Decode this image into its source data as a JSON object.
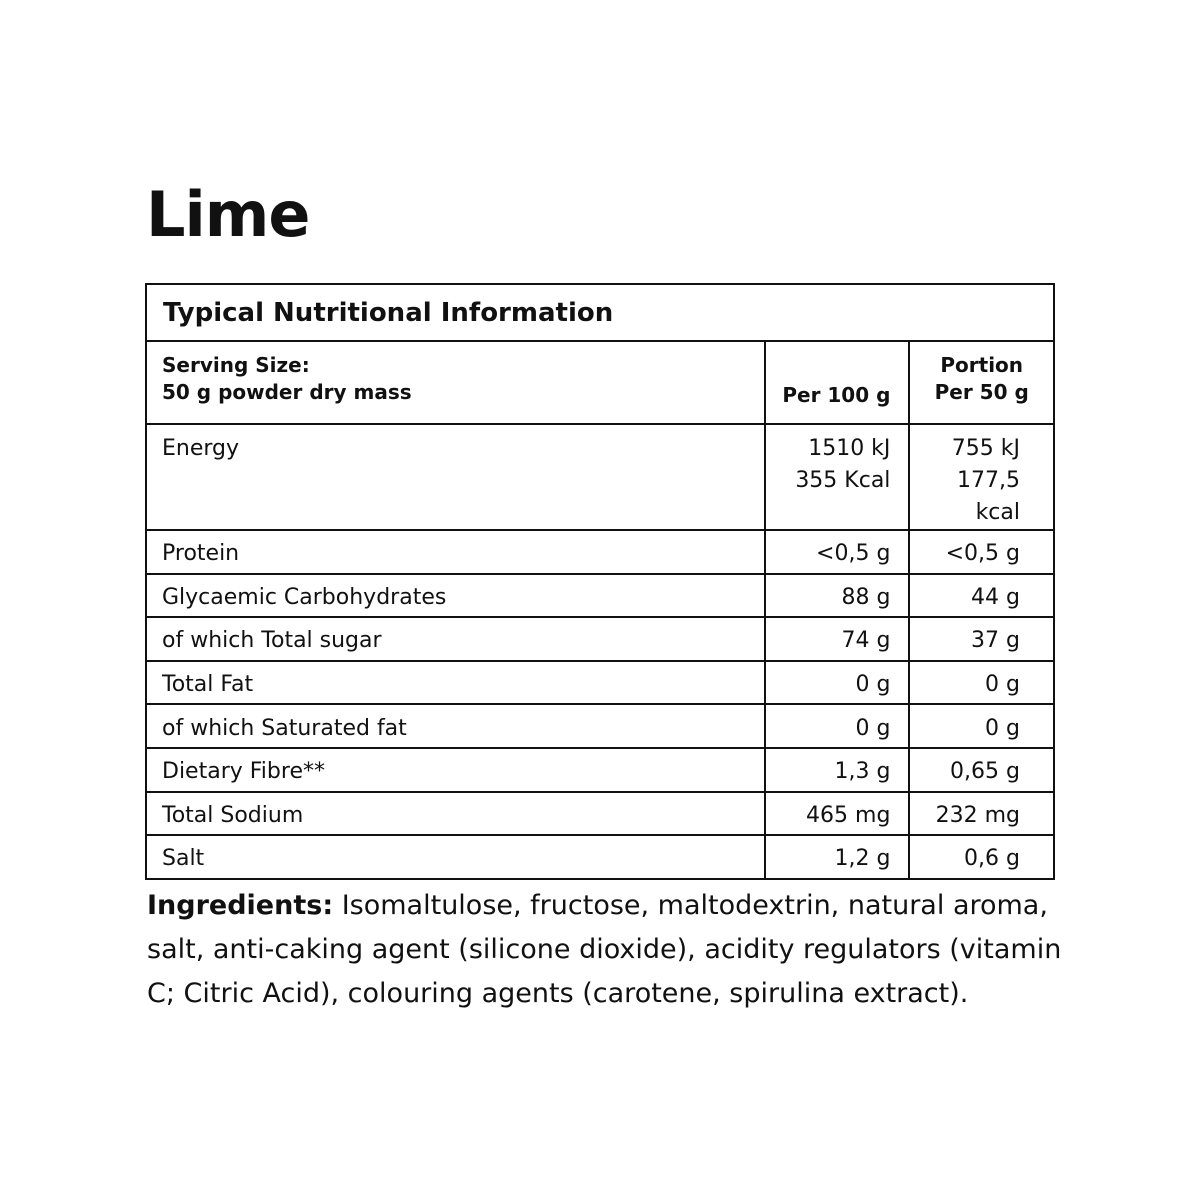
{
  "title": "Lime",
  "table": {
    "caption": "Typical Nutritional Information",
    "serving_label": "Serving Size:",
    "serving_value": "50 g powder dry mass",
    "col_per100": "Per 100 g",
    "col_portion_line1": "Portion",
    "col_portion_line2": "Per 50 g",
    "energy": {
      "label": "Energy",
      "per100_kj": "1510 kJ",
      "per100_kcal": "355 Kcal",
      "portion_kj": "755 kJ",
      "portion_kcal": "177,5 kcal"
    },
    "rows": [
      {
        "label": "Protein",
        "per100": "<0,5 g",
        "portion": "<0,5 g"
      },
      {
        "label": "Glycaemic Carbohydrates",
        "per100": "88 g",
        "portion": "44 g"
      },
      {
        "label": "of which Total sugar",
        "per100": "74 g",
        "portion": "37 g"
      },
      {
        "label": "Total Fat",
        "per100": "0 g",
        "portion": "0 g"
      },
      {
        "label": "of which Saturated fat",
        "per100": "0 g",
        "portion": "0 g"
      },
      {
        "label": "Dietary Fibre**",
        "per100": "1,3 g",
        "portion": "0,65 g"
      },
      {
        "label": "Total Sodium",
        "per100": "465 mg",
        "portion": "232 mg"
      },
      {
        "label": "Salt",
        "per100": "1,2 g",
        "portion": "0,6 g"
      }
    ]
  },
  "ingredients": {
    "label": "Ingredients:",
    "text": " Isomaltulose, fructose, maltodextrin, natural aroma, salt, anti-caking agent (silicone dioxide), acidity regulators (vitamin C; Citric Acid), colouring agents (carotene, spirulina extract)."
  }
}
